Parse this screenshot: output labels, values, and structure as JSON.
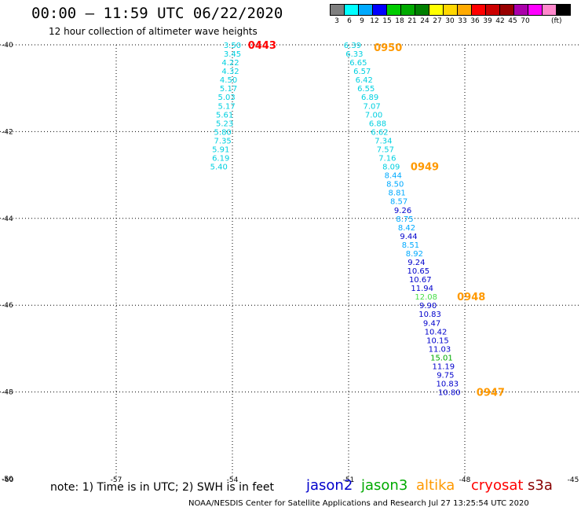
{
  "header": {
    "title": "00:00 – 11:59 UTC 06/22/2020",
    "subtitle": "12 hour collection of altimeter wave heights"
  },
  "color_scale": {
    "unit": "(ft)",
    "bins": [
      {
        "label": "3",
        "color": "#7f7f7f"
      },
      {
        "label": "6",
        "color": "#00ffff"
      },
      {
        "label": "9",
        "color": "#00aaff"
      },
      {
        "label": "12",
        "color": "#0000ff"
      },
      {
        "label": "15",
        "color": "#00cc00"
      },
      {
        "label": "18",
        "color": "#00aa00"
      },
      {
        "label": "21",
        "color": "#007f00"
      },
      {
        "label": "24",
        "color": "#ffff00"
      },
      {
        "label": "27",
        "color": "#ffd700"
      },
      {
        "label": "30",
        "color": "#ffaa00"
      },
      {
        "label": "33",
        "color": "#ff0000"
      },
      {
        "label": "36",
        "color": "#cc0000"
      },
      {
        "label": "39",
        "color": "#990000"
      },
      {
        "label": "42",
        "color": "#aa00aa"
      },
      {
        "label": "45",
        "color": "#ff00ff"
      },
      {
        "label": "70",
        "color": "#ff88cc"
      },
      {
        "label": "",
        "color": "#000000"
      }
    ]
  },
  "map": {
    "lon_range": [
      -60,
      -45
    ],
    "lat_range": [
      -50,
      -40
    ],
    "lon_ticks": [
      "-60",
      "-57",
      "-54",
      "-51",
      "-48",
      "-45"
    ],
    "lat_ticks": [
      "-40",
      "-42",
      "-44",
      "-46",
      "-48",
      "-50"
    ],
    "grid": "dotted"
  },
  "tracks": [
    {
      "satellite": "cryosat",
      "time_label": "0443",
      "time_color": "#ff0000",
      "points": [
        {
          "lon": -54.0,
          "lat": -40.0,
          "swh": "3.50",
          "color": "#00d0e0"
        },
        {
          "lon": -54.0,
          "lat": -40.2,
          "swh": "3.45",
          "color": "#00d0e0"
        },
        {
          "lon": -54.05,
          "lat": -40.4,
          "swh": "4.22",
          "color": "#00d0e0"
        },
        {
          "lon": -54.05,
          "lat": -40.6,
          "swh": "4.32",
          "color": "#00d0e0"
        },
        {
          "lon": -54.1,
          "lat": -40.8,
          "swh": "4.50",
          "color": "#00d0e0"
        },
        {
          "lon": -54.1,
          "lat": -41.0,
          "swh": "5.17",
          "color": "#00d0e0"
        },
        {
          "lon": -54.15,
          "lat": -41.2,
          "swh": "5.03",
          "color": "#00d0e0"
        },
        {
          "lon": -54.15,
          "lat": -41.4,
          "swh": "5.17",
          "color": "#00d0e0"
        },
        {
          "lon": -54.2,
          "lat": -41.6,
          "swh": "5.61",
          "color": "#00d0e0"
        },
        {
          "lon": -54.2,
          "lat": -41.8,
          "swh": "5.23",
          "color": "#00d0e0"
        },
        {
          "lon": -54.25,
          "lat": -42.0,
          "swh": "5.80",
          "color": "#00d0e0"
        },
        {
          "lon": -54.25,
          "lat": -42.2,
          "swh": "7.35",
          "color": "#00d0e0"
        },
        {
          "lon": -54.3,
          "lat": -42.4,
          "swh": "5.91",
          "color": "#00d0e0"
        },
        {
          "lon": -54.3,
          "lat": -42.6,
          "swh": "6.19",
          "color": "#00d0e0"
        },
        {
          "lon": -54.35,
          "lat": -42.8,
          "swh": "5.40",
          "color": "#00d0e0"
        }
      ]
    },
    {
      "satellite": "altika",
      "time_label": "0950",
      "time_color": "#ff9900",
      "points": [
        {
          "lon": -50.9,
          "lat": -40.0,
          "swh": "6.39",
          "color": "#00d0e0"
        },
        {
          "lon": -50.85,
          "lat": -40.2,
          "swh": "6.33",
          "color": "#00d0e0"
        },
        {
          "lon": -50.75,
          "lat": -40.4,
          "swh": "6.65",
          "color": "#00d0e0"
        },
        {
          "lon": -50.65,
          "lat": -40.6,
          "swh": "6.57",
          "color": "#00d0e0"
        },
        {
          "lon": -50.6,
          "lat": -40.8,
          "swh": "6.42",
          "color": "#00d0e0"
        },
        {
          "lon": -50.55,
          "lat": -41.0,
          "swh": "6.55",
          "color": "#00d0e0"
        },
        {
          "lon": -50.45,
          "lat": -41.2,
          "swh": "6.89",
          "color": "#00d0e0"
        },
        {
          "lon": -50.4,
          "lat": -41.4,
          "swh": "7.07",
          "color": "#00d0e0"
        },
        {
          "lon": -50.35,
          "lat": -41.6,
          "swh": "7.00",
          "color": "#00d0e0"
        },
        {
          "lon": -50.25,
          "lat": -41.8,
          "swh": "6.88",
          "color": "#00d0e0"
        },
        {
          "lon": -50.2,
          "lat": -42.0,
          "swh": "6.62",
          "color": "#00d0e0"
        },
        {
          "lon": -50.1,
          "lat": -42.2,
          "swh": "7.34",
          "color": "#00d0e0"
        },
        {
          "lon": -50.05,
          "lat": -42.4,
          "swh": "7.57",
          "color": "#00d0e0"
        },
        {
          "lon": -50.0,
          "lat": -42.6,
          "swh": "7.16",
          "color": "#00d0e0"
        },
        {
          "lon": -49.9,
          "lat": -42.8,
          "swh": "8.09",
          "color": "#00d0e0"
        }
      ]
    },
    {
      "satellite": "jason2",
      "time_label": "0949",
      "time_color": "#ff9900",
      "points": [
        {
          "lon": -49.85,
          "lat": -43.0,
          "swh": "8.44",
          "color": "#00aaff"
        },
        {
          "lon": -49.8,
          "lat": -43.2,
          "swh": "8.50",
          "color": "#00aaff"
        },
        {
          "lon": -49.75,
          "lat": -43.4,
          "swh": "8.81",
          "color": "#00aaff"
        },
        {
          "lon": -49.7,
          "lat": -43.6,
          "swh": "8.57",
          "color": "#00aaff"
        },
        {
          "lon": -49.6,
          "lat": -43.8,
          "swh": "9.26",
          "color": "#0000cc"
        },
        {
          "lon": -49.55,
          "lat": -44.0,
          "swh": "8.75",
          "color": "#00aaff"
        },
        {
          "lon": -49.5,
          "lat": -44.2,
          "swh": "8.42",
          "color": "#00aaff"
        },
        {
          "lon": -49.45,
          "lat": -44.4,
          "swh": "9.44",
          "color": "#0000cc"
        },
        {
          "lon": -49.4,
          "lat": -44.6,
          "swh": "8.51",
          "color": "#00aaff"
        },
        {
          "lon": -49.3,
          "lat": -44.8,
          "swh": "8.92",
          "color": "#00aaff"
        },
        {
          "lon": -49.25,
          "lat": -45.0,
          "swh": "9.24",
          "color": "#0000cc"
        },
        {
          "lon": -49.2,
          "lat": -45.2,
          "swh": "10.65",
          "color": "#0000cc"
        },
        {
          "lon": -49.15,
          "lat": -45.4,
          "swh": "10.67",
          "color": "#0000cc"
        },
        {
          "lon": -49.1,
          "lat": -45.6,
          "swh": "11.94",
          "color": "#0000cc"
        },
        {
          "lon": -49.0,
          "lat": -45.8,
          "swh": "12.08",
          "color": "#44dd44"
        }
      ]
    },
    {
      "satellite": "altika",
      "time_label": "0948",
      "time_color": "#ff9900",
      "points": [
        {
          "lon": -48.95,
          "lat": -46.0,
          "swh": "9.90",
          "color": "#0000cc"
        },
        {
          "lon": -48.9,
          "lat": -46.2,
          "swh": "10.83",
          "color": "#0000cc"
        },
        {
          "lon": -48.85,
          "lat": -46.4,
          "swh": "9.47",
          "color": "#0000cc"
        },
        {
          "lon": -48.75,
          "lat": -46.6,
          "swh": "10.42",
          "color": "#0000cc"
        },
        {
          "lon": -48.7,
          "lat": -46.8,
          "swh": "10.15",
          "color": "#0000cc"
        },
        {
          "lon": -48.65,
          "lat": -47.0,
          "swh": "11.03",
          "color": "#0000cc"
        },
        {
          "lon": -48.6,
          "lat": -47.2,
          "swh": "15.01",
          "color": "#00aa00"
        },
        {
          "lon": -48.55,
          "lat": -47.4,
          "swh": "11.19",
          "color": "#0000cc"
        },
        {
          "lon": -48.5,
          "lat": -47.6,
          "swh": "9.75",
          "color": "#0000cc"
        },
        {
          "lon": -48.45,
          "lat": -47.8,
          "swh": "10.83",
          "color": "#0000cc"
        },
        {
          "lon": -48.4,
          "lat": -48.0,
          "swh": "10.80",
          "color": "#0000cc"
        }
      ]
    }
  ],
  "time_markers": [
    {
      "label": "0443",
      "lon": -53.6,
      "lat": -40.0,
      "color": "#ff0000"
    },
    {
      "label": "0950",
      "lon": -50.35,
      "lat": -40.05,
      "color": "#ff9900"
    },
    {
      "label": "0949",
      "lon": -49.4,
      "lat": -42.8,
      "color": "#ff9900"
    },
    {
      "label": "0948",
      "lon": -48.2,
      "lat": -45.8,
      "color": "#ff9900"
    },
    {
      "label": "0947",
      "lon": -47.7,
      "lat": -48.0,
      "color": "#ff9900"
    }
  ],
  "legend": {
    "note": "note: 1) Time is in UTC; 2) SWH is in feet",
    "satellites": [
      {
        "name": "jason2",
        "color": "#0000cc"
      },
      {
        "name": "jason3",
        "color": "#00aa00"
      },
      {
        "name": "altika",
        "color": "#ff9900"
      },
      {
        "name": "cryosat",
        "color": "#ff0000"
      },
      {
        "name": "s3a",
        "color": "#880000"
      }
    ]
  },
  "footer": {
    "credit": "NOAA/NESDIS Center for Satellite Applications and Research   Jul 27 13:25:54 UTC 2020"
  }
}
